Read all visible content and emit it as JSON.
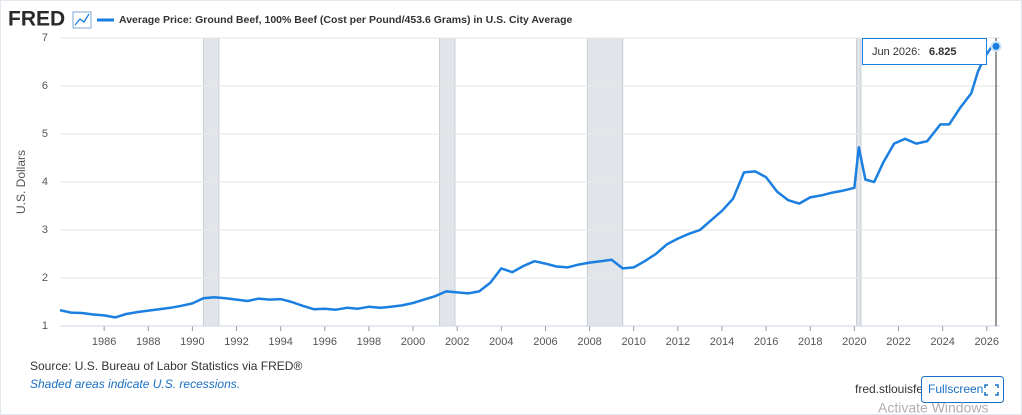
{
  "logo": "FRED",
  "chart_data": {
    "type": "line",
    "ylabel": "U.S. Dollars",
    "xlim": [
      1984,
      2026.6
    ],
    "ylim": [
      1,
      7
    ],
    "xticks": [
      1986,
      1988,
      1990,
      1992,
      1994,
      1996,
      1998,
      2000,
      2002,
      2004,
      2006,
      2008,
      2010,
      2012,
      2014,
      2016,
      2018,
      2020,
      2022,
      2024,
      2026
    ],
    "yticks": [
      1,
      2,
      3,
      4,
      5,
      6,
      7
    ],
    "grid": true,
    "recessions": [
      [
        1990.5,
        1991.2
      ],
      [
        2001.2,
        2001.9
      ],
      [
        2007.9,
        2009.5
      ],
      [
        2020.1,
        2020.3
      ]
    ],
    "series": [
      {
        "name": "Average Price: Ground Beef, 100% Beef (Cost per Pound/453.6 Grams) in U.S. City Average",
        "color": "#1a7fe0",
        "x": [
          1984,
          1984.5,
          1985,
          1985.5,
          1986,
          1986.5,
          1987,
          1987.5,
          1988,
          1988.5,
          1989,
          1989.5,
          1990,
          1990.5,
          1991,
          1991.5,
          1992,
          1992.5,
          1993,
          1993.5,
          1994,
          1994.5,
          1995,
          1995.5,
          1996,
          1996.5,
          1997,
          1997.5,
          1998,
          1998.5,
          1999,
          1999.5,
          2000,
          2000.5,
          2001,
          2001.5,
          2002,
          2002.5,
          2003,
          2003.5,
          2004,
          2004.5,
          2005,
          2005.5,
          2006,
          2006.5,
          2007,
          2007.5,
          2008,
          2008.5,
          2009,
          2009.5,
          2010,
          2010.5,
          2011,
          2011.5,
          2012,
          2012.5,
          2013,
          2013.5,
          2014,
          2014.5,
          2015,
          2015.5,
          2016,
          2016.5,
          2017,
          2017.5,
          2018,
          2018.5,
          2019,
          2019.5,
          2020,
          2020.2,
          2020.5,
          2020.9,
          2021.3,
          2021.8,
          2022.3,
          2022.8,
          2023.3,
          2023.9,
          2024.3,
          2024.8,
          2025.3,
          2025.6,
          2025.9,
          2026.2,
          2026.42
        ],
        "values": [
          1.33,
          1.28,
          1.27,
          1.24,
          1.22,
          1.18,
          1.25,
          1.29,
          1.32,
          1.35,
          1.38,
          1.42,
          1.47,
          1.58,
          1.6,
          1.58,
          1.55,
          1.52,
          1.57,
          1.55,
          1.56,
          1.5,
          1.42,
          1.35,
          1.36,
          1.34,
          1.38,
          1.36,
          1.4,
          1.38,
          1.4,
          1.43,
          1.48,
          1.55,
          1.62,
          1.72,
          1.7,
          1.68,
          1.72,
          1.9,
          2.2,
          2.12,
          2.25,
          2.35,
          2.3,
          2.24,
          2.22,
          2.28,
          2.32,
          2.35,
          2.38,
          2.2,
          2.22,
          2.35,
          2.5,
          2.7,
          2.82,
          2.92,
          3.0,
          3.2,
          3.4,
          3.65,
          4.2,
          4.22,
          4.1,
          3.8,
          3.62,
          3.55,
          3.68,
          3.72,
          3.78,
          3.82,
          3.88,
          4.72,
          4.05,
          4.0,
          4.4,
          4.8,
          4.9,
          4.8,
          4.85,
          5.2,
          5.2,
          5.55,
          5.85,
          6.3,
          6.6,
          6.8,
          6.825
        ]
      }
    ],
    "tooltip": {
      "label": "Jun 2026:",
      "value": 6.825
    }
  },
  "source": "Source: U.S. Bureau of Labor Statistics via FRED®",
  "note": "Shaded areas indicate U.S. recessions.",
  "site": "fred.stlouisfed.org",
  "fullscreen": "Fullscreen",
  "watermark": "Activate Windows"
}
